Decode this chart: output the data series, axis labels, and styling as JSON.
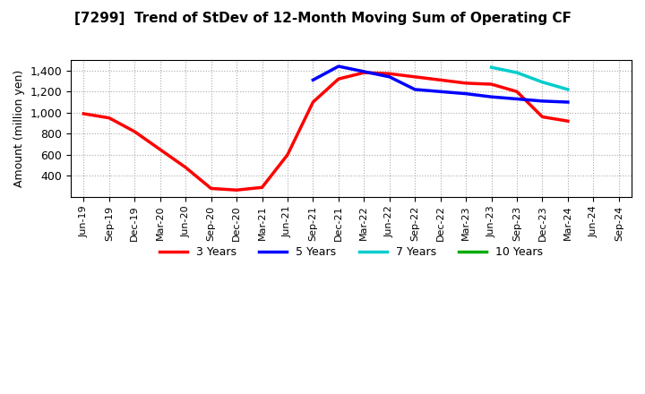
{
  "title": "[7299]  Trend of StDev of 12-Month Moving Sum of Operating CF",
  "ylabel": "Amount (million yen)",
  "background_color": "#ffffff",
  "plot_background_color": "#ffffff",
  "grid_color": "#aaaaaa",
  "series": [
    {
      "key": "3yr",
      "color": "#ff0000",
      "label": "3 Years",
      "x": [
        "Jun-19",
        "Sep-19",
        "Dec-19",
        "Mar-20",
        "Jun-20",
        "Sep-20",
        "Dec-20",
        "Mar-21",
        "Jun-21",
        "Sep-21",
        "Dec-21",
        "Mar-22",
        "Jun-22",
        "Sep-22",
        "Dec-22",
        "Mar-23",
        "Jun-23",
        "Sep-23",
        "Dec-23",
        "Mar-24"
      ],
      "y": [
        990,
        950,
        820,
        650,
        480,
        280,
        265,
        290,
        600,
        1100,
        1320,
        1380,
        1370,
        1340,
        1310,
        1280,
        1270,
        1200,
        960,
        920
      ]
    },
    {
      "key": "5yr",
      "color": "#0000ff",
      "label": "5 Years",
      "x": [
        "Sep-21",
        "Dec-21",
        "Mar-22",
        "Jun-22",
        "Sep-22",
        "Dec-22",
        "Mar-23",
        "Jun-23",
        "Sep-23",
        "Dec-23",
        "Mar-24"
      ],
      "y": [
        1310,
        1440,
        1390,
        1340,
        1220,
        1200,
        1180,
        1150,
        1130,
        1110,
        1100
      ]
    },
    {
      "key": "7yr",
      "color": "#00cccc",
      "label": "7 Years",
      "x": [
        "Jun-23",
        "Sep-23",
        "Dec-23",
        "Mar-24"
      ],
      "y": [
        1430,
        1380,
        1290,
        1220
      ]
    },
    {
      "key": "10yr",
      "color": "#00aa00",
      "label": "10 Years",
      "x": [],
      "y": []
    }
  ],
  "xticks": [
    "Jun-19",
    "Sep-19",
    "Dec-19",
    "Mar-20",
    "Jun-20",
    "Sep-20",
    "Dec-20",
    "Mar-21",
    "Jun-21",
    "Sep-21",
    "Dec-21",
    "Mar-22",
    "Jun-22",
    "Sep-22",
    "Dec-22",
    "Mar-23",
    "Jun-23",
    "Sep-23",
    "Dec-23",
    "Mar-24",
    "Jun-24",
    "Sep-24"
  ],
  "ylim": [
    200,
    1500
  ],
  "yticks": [
    400,
    600,
    800,
    1000,
    1200,
    1400
  ],
  "ytick_labels": [
    "400",
    "600",
    "800",
    "1,000",
    "1,200",
    "1,400"
  ]
}
